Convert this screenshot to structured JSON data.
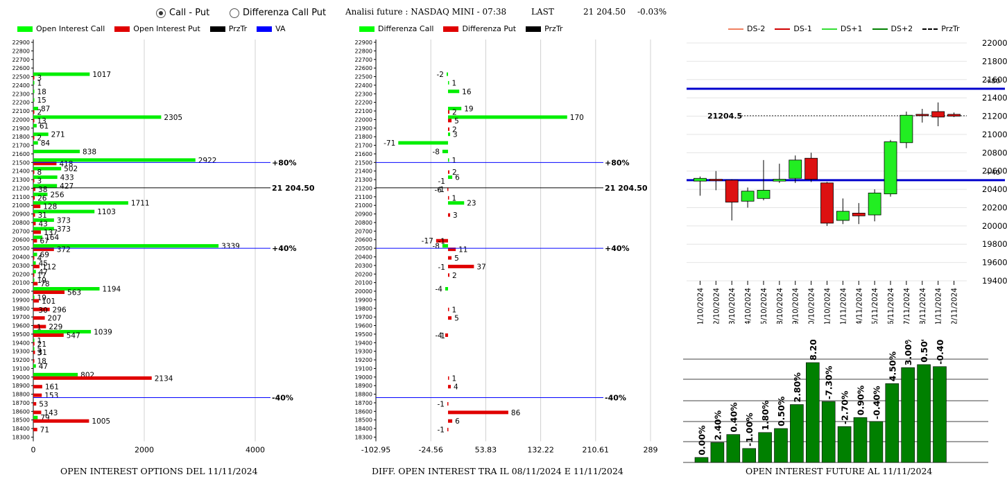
{
  "controls": {
    "radio_call_put": "Call - Put",
    "radio_diff": "Differenza Call Put"
  },
  "header": {
    "title": "Analisi future : NASDAQ MINI - 07:38",
    "last_label": "LAST",
    "last_value": "21 204.50",
    "change": "-0.03%"
  },
  "legend_oi": [
    {
      "label": "Open Interest Call",
      "color": "#00ff00",
      "kind": "box"
    },
    {
      "label": "Open Interest Put",
      "color": "#e00000",
      "kind": "box"
    },
    {
      "label": "PrzTr",
      "color": "#000000",
      "kind": "box"
    },
    {
      "label": "VA",
      "color": "#0000ff",
      "kind": "box"
    }
  ],
  "legend_diff": [
    {
      "label": "Differenza Call",
      "color": "#00ff00",
      "kind": "box"
    },
    {
      "label": "Differenza Put",
      "color": "#e00000",
      "kind": "box"
    },
    {
      "label": "PrzTr",
      "color": "#000000",
      "kind": "box"
    }
  ],
  "legend_candle": [
    {
      "label": "DS-2",
      "color": "#f08060",
      "kind": "line"
    },
    {
      "label": "DS-1",
      "color": "#d00000",
      "kind": "line"
    },
    {
      "label": "DS+1",
      "color": "#33dd33",
      "kind": "line"
    },
    {
      "label": "DS+2",
      "color": "#008000",
      "kind": "line"
    },
    {
      "label": "PrzTr",
      "color": "#000000",
      "kind": "dash"
    }
  ],
  "captions": {
    "oi": "OPEN INTEREST OPTIONS DEL 11/11/2024",
    "diff": "DIFF. OPEN INTEREST TRA IL 08/11/2024 E 11/11/2024",
    "future": "OPEN INTEREST FUTURE AL 11/11/2024"
  },
  "colors": {
    "call": "#00ee00",
    "put": "#e00000",
    "va": "#0000ff",
    "grid": "#d0d0d0",
    "candle_up": "#22ee22",
    "candle_down": "#dd1111",
    "oi_bar": "#008000"
  },
  "chart_data": [
    {
      "type": "bar",
      "name": "open-interest-options",
      "orientation": "horizontal",
      "strikes_ticks": [
        22900,
        22800,
        22700,
        22600,
        22500,
        22400,
        22300,
        22200,
        22100,
        22000,
        21900,
        21800,
        21700,
        21600,
        21500,
        21400,
        21300,
        21200,
        21100,
        21000,
        20900,
        20800,
        20700,
        20600,
        20500,
        20400,
        20300,
        20200,
        20100,
        20000,
        19900,
        19800,
        19700,
        19600,
        19500,
        19400,
        19300,
        19200,
        19100,
        19000,
        18900,
        18800,
        18700,
        18600,
        18500,
        18400,
        18300
      ],
      "xticks": [
        0,
        2000,
        4000
      ],
      "xlim": [
        0,
        4000
      ],
      "call": [
        [
          22500,
          1017
        ],
        [
          22400,
          1
        ],
        [
          22300,
          18
        ],
        [
          22200,
          15
        ],
        [
          22100,
          87
        ],
        [
          22000,
          2305
        ],
        [
          21900,
          61
        ],
        [
          21800,
          271
        ],
        [
          21700,
          84
        ],
        [
          21600,
          838
        ],
        [
          21500,
          2922
        ],
        [
          21400,
          502
        ],
        [
          21300,
          433
        ],
        [
          21200,
          427
        ],
        [
          21100,
          256
        ],
        [
          21000,
          1711
        ],
        [
          20900,
          1103
        ],
        [
          20800,
          373
        ],
        [
          20700,
          373
        ],
        [
          20600,
          164
        ],
        [
          20500,
          3339
        ],
        [
          20400,
          69
        ],
        [
          20300,
          45
        ],
        [
          20200,
          47
        ],
        [
          20100,
          19
        ],
        [
          20000,
          1194
        ],
        [
          19900,
          19
        ],
        [
          19500,
          1039
        ],
        [
          19400,
          1
        ],
        [
          19300,
          5
        ],
        [
          19100,
          47
        ],
        [
          19000,
          802
        ],
        [
          18500,
          79
        ]
      ],
      "put": [
        [
          22500,
          3
        ],
        [
          22100,
          2
        ],
        [
          22000,
          13
        ],
        [
          21800,
          2
        ],
        [
          21500,
          418
        ],
        [
          21400,
          8
        ],
        [
          21300,
          3
        ],
        [
          21200,
          38
        ],
        [
          21100,
          26
        ],
        [
          21000,
          128
        ],
        [
          20900,
          31
        ],
        [
          20800,
          43
        ],
        [
          20700,
          137
        ],
        [
          20600,
          67
        ],
        [
          20500,
          372
        ],
        [
          20400,
          4
        ],
        [
          20300,
          112
        ],
        [
          20200,
          17
        ],
        [
          20100,
          78
        ],
        [
          20000,
          563
        ],
        [
          19900,
          101
        ],
        [
          19800,
          296
        ],
        [
          19700,
          207
        ],
        [
          19600,
          229
        ],
        [
          19500,
          547
        ],
        [
          19400,
          21
        ],
        [
          19300,
          31
        ],
        [
          19200,
          18
        ],
        [
          19000,
          2134
        ],
        [
          18900,
          161
        ],
        [
          18800,
          153
        ],
        [
          18700,
          53
        ],
        [
          18600,
          143
        ],
        [
          18500,
          1005
        ],
        [
          18400,
          71
        ]
      ],
      "extra_labels": [
        [
          19800,
          30
        ],
        [
          19600,
          1
        ],
        [
          19300,
          3
        ]
      ],
      "reference_lines": [
        {
          "label": "+80%",
          "strike": 21500,
          "color": "#0000ff"
        },
        {
          "label": "21 204.50",
          "strike": 21204.5,
          "color": "#000000"
        },
        {
          "label": "+40%",
          "strike": 20500,
          "color": "#0000ff"
        },
        {
          "label": "-40%",
          "strike": 18760,
          "color": "#0000ff"
        }
      ]
    },
    {
      "type": "bar",
      "name": "diff-open-interest",
      "orientation": "horizontal",
      "xticks": [
        -102.95,
        -24.56,
        53.83,
        132.22,
        210.61,
        289
      ],
      "xlim": [
        -102.95,
        289
      ],
      "call": [
        [
          22500,
          -2
        ],
        [
          22400,
          1
        ],
        [
          22300,
          16
        ],
        [
          22100,
          19
        ],
        [
          22000,
          170
        ],
        [
          21800,
          3
        ],
        [
          21700,
          -71
        ],
        [
          21600,
          -8
        ],
        [
          21500,
          1
        ],
        [
          21300,
          6
        ],
        [
          21000,
          23
        ],
        [
          20500,
          -8
        ],
        [
          20000,
          -4
        ]
      ],
      "put": [
        [
          22100,
          2
        ],
        [
          22000,
          5
        ],
        [
          21900,
          2
        ],
        [
          21400,
          2
        ],
        [
          21200,
          -1
        ],
        [
          21100,
          1
        ],
        [
          20900,
          3
        ],
        [
          20600,
          -17
        ],
        [
          20500,
          11
        ],
        [
          20400,
          5
        ],
        [
          20300,
          37
        ],
        [
          20200,
          2
        ],
        [
          19800,
          1
        ],
        [
          19700,
          5
        ],
        [
          19500,
          -4
        ],
        [
          19000,
          1
        ],
        [
          18900,
          4
        ],
        [
          18700,
          -1
        ],
        [
          18600,
          86
        ],
        [
          18500,
          6
        ],
        [
          18400,
          -1
        ]
      ],
      "extra_labels": [
        [
          21300,
          -1
        ],
        [
          21200,
          -6
        ],
        [
          20600,
          -1
        ],
        [
          20300,
          -1
        ],
        [
          19500,
          -1
        ]
      ],
      "reference_lines": [
        {
          "label": "+80%",
          "strike": 21500,
          "color": "#0000ff"
        },
        {
          "label": "21 204.50",
          "strike": 21204.5,
          "color": "#000000"
        },
        {
          "label": "+40%",
          "strike": 20500,
          "color": "#0000ff"
        },
        {
          "label": "-40%",
          "strike": 18760,
          "color": "#0000ff"
        }
      ]
    },
    {
      "type": "candlestick",
      "name": "future-price",
      "ylim": [
        19400,
        22000
      ],
      "yticks": [
        22000,
        21800,
        21600,
        21400,
        21200,
        21000,
        20800,
        20600,
        20400,
        20200,
        20000,
        19800,
        19600,
        19400
      ],
      "dates": [
        "21/10/2024",
        "22/10/2024",
        "23/10/2024",
        "24/10/2024",
        "25/10/2024",
        "28/10/2024",
        "29/10/2024",
        "30/10/2024",
        "31/10/2024",
        "01/11/2024",
        "04/11/2024",
        "05/11/2024",
        "06/11/2024",
        "07/11/2024",
        "08/11/2024",
        "11/11/2024",
        "12/11/2024"
      ],
      "ohlc": [
        [
          20490,
          20540,
          20330,
          20520
        ],
        [
          20510,
          20600,
          20390,
          20500
        ],
        [
          20500,
          20510,
          20060,
          20260
        ],
        [
          20270,
          20420,
          20200,
          20380
        ],
        [
          20300,
          20720,
          20280,
          20390
        ],
        [
          20490,
          20680,
          20470,
          20510
        ],
        [
          20520,
          20770,
          20470,
          20720
        ],
        [
          20740,
          20800,
          20480,
          20510
        ],
        [
          20470,
          20480,
          20000,
          20030
        ],
        [
          20060,
          20300,
          20020,
          20160
        ],
        [
          20140,
          20250,
          20020,
          20110
        ],
        [
          20120,
          20400,
          20050,
          20360
        ],
        [
          20350,
          20940,
          20320,
          20920
        ],
        [
          20910,
          21250,
          20850,
          21210
        ],
        [
          21220,
          21280,
          21130,
          21210
        ],
        [
          21250,
          21350,
          21090,
          21190
        ],
        [
          21220,
          21240,
          21190,
          21200
        ]
      ],
      "hlines": [
        {
          "label": "+80",
          "value": 21500,
          "color": "#0000cc"
        },
        {
          "label": "+40",
          "value": 20500,
          "color": "#0000cc"
        }
      ],
      "last_label": "21204.5",
      "last_value": 21204.5
    },
    {
      "type": "bar",
      "name": "open-interest-future",
      "values": [
        0.0,
        2.4,
        0.4,
        -1.0,
        1.8,
        0.5,
        2.8,
        8.2,
        -7.3,
        -2.7,
        0.9,
        -0.4,
        4.5,
        3.0,
        0.5,
        -0.4
      ],
      "labels": [
        "0.00%",
        "2.40%",
        "0.40%",
        "-1.00%",
        "1.80%",
        "0.50%",
        "2.80%",
        "8.20%",
        "-7.30%",
        "-2.70%",
        "0.90%",
        "-0.40%",
        "4.50%",
        "3.00%",
        "0.50%",
        "-0.40%"
      ],
      "levels": [
        0.05,
        0.2,
        0.28,
        0.14,
        0.3,
        0.34,
        0.58,
        1.0,
        0.61,
        0.36,
        0.45,
        0.41,
        0.79,
        0.95,
        0.98,
        0.96
      ]
    }
  ]
}
